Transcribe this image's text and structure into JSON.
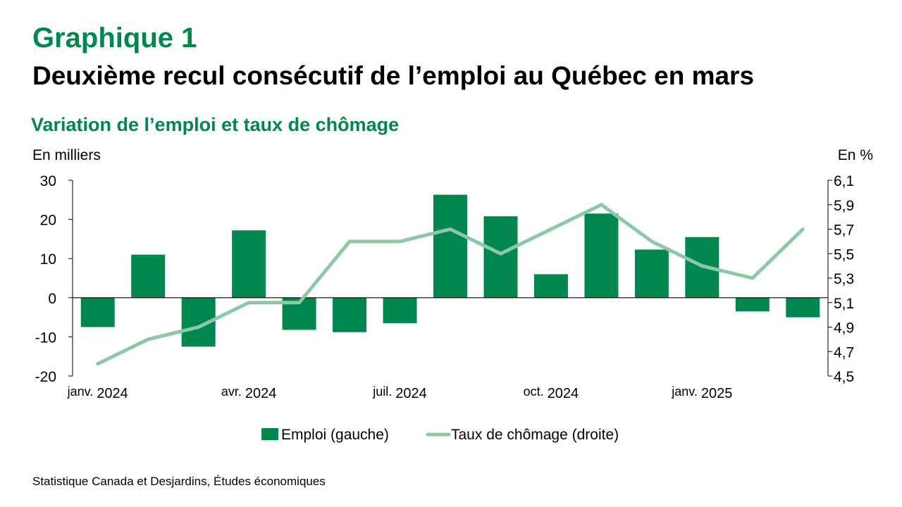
{
  "header": {
    "kicker": "Graphique 1",
    "title": "Deuxième recul consécutif de l’emploi au Québec en mars",
    "subtitle": "Variation de l’emploi et taux de chômage"
  },
  "source": "Statistique Canada et Desjardins, Études économiques",
  "colors": {
    "accent": "#00874E",
    "bars": "#00874E",
    "line": "#8DC8A6"
  },
  "chart_data": {
    "type": "bar",
    "left_axis": {
      "label": "En milliers",
      "ylim": [
        -20,
        30
      ],
      "ticks": [
        30,
        20,
        10,
        0,
        -10,
        -20
      ],
      "tick_labels": [
        "30",
        "20",
        "10",
        "0",
        "-10",
        "-20"
      ]
    },
    "right_axis": {
      "label": "En %",
      "ylim": [
        4.5,
        6.1
      ],
      "ticks": [
        6.1,
        5.9,
        5.7,
        5.5,
        5.3,
        5.1,
        4.9,
        4.7,
        4.5
      ],
      "tick_labels": [
        "6,1",
        "5,9",
        "5,7",
        "5,5",
        "5,3",
        "5,1",
        "4,9",
        "4,7",
        "4,5"
      ]
    },
    "x_tick_labels": [
      {
        "index": 0,
        "month": "janv.",
        "year": "2024"
      },
      {
        "index": 3,
        "month": "avr.",
        "year": "2024"
      },
      {
        "index": 6,
        "month": "juil.",
        "year": "2024"
      },
      {
        "index": 9,
        "month": "oct.",
        "year": "2024"
      },
      {
        "index": 12,
        "month": "janv.",
        "year": "2025"
      }
    ],
    "series": [
      {
        "name": "Emploi (gauche)",
        "type": "bar",
        "axis": "left",
        "values": [
          -7.5,
          11,
          -12.5,
          17.2,
          -8.2,
          -8.8,
          -6.5,
          26.3,
          20.8,
          6,
          21.5,
          12.3,
          15.5,
          -3.5,
          -5
        ]
      },
      {
        "name": "Taux de chômage (droite)",
        "type": "line",
        "axis": "right",
        "values": [
          4.6,
          4.8,
          4.9,
          5.1,
          5.1,
          5.6,
          5.6,
          5.7,
          5.5,
          5.7,
          5.9,
          5.6,
          5.4,
          5.3,
          5.7
        ]
      }
    ],
    "legend_position": "bottom-center",
    "grid": false
  }
}
